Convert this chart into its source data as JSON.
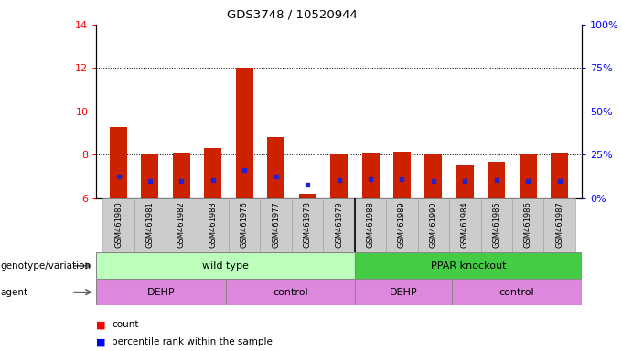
{
  "title": "GDS3748 / 10520944",
  "samples": [
    "GSM461980",
    "GSM461981",
    "GSM461982",
    "GSM461983",
    "GSM461976",
    "GSM461977",
    "GSM461978",
    "GSM461979",
    "GSM461988",
    "GSM461989",
    "GSM461990",
    "GSM461984",
    "GSM461985",
    "GSM461986",
    "GSM461987"
  ],
  "red_bar_tops": [
    9.3,
    8.05,
    8.1,
    8.3,
    12.0,
    8.8,
    6.2,
    8.0,
    8.1,
    8.15,
    8.05,
    7.5,
    7.7,
    8.05,
    8.1
  ],
  "blue_dot_y": [
    7.0,
    6.8,
    6.8,
    6.85,
    7.3,
    7.0,
    6.65,
    6.85,
    6.9,
    6.9,
    6.8,
    6.8,
    6.85,
    6.8,
    6.8
  ],
  "bar_bottom": 6.0,
  "ylim_left": [
    6,
    14
  ],
  "ylim_right": [
    0,
    100
  ],
  "yticks_left": [
    6,
    8,
    10,
    12,
    14
  ],
  "yticks_right": [
    0,
    25,
    50,
    75,
    100
  ],
  "ytick_labels_right": [
    "0%",
    "25%",
    "50%",
    "75%",
    "100%"
  ],
  "dotted_lines": [
    8,
    10,
    12
  ],
  "bar_color": "#cc2200",
  "dot_color": "#2222cc",
  "bar_width": 0.55,
  "wild_type_label": "wild type",
  "ppar_label": "PPAR knockout",
  "dehp_label": "DEHP",
  "control_label": "control",
  "wild_type_color": "#bbffbb",
  "ppar_color": "#44cc44",
  "agent_color": "#dd88dd",
  "tick_area_color": "#cccccc",
  "genotype_label": "genotype/variation",
  "agent_row_label": "agent",
  "legend_count": "count",
  "legend_percentile": "percentile rank within the sample"
}
